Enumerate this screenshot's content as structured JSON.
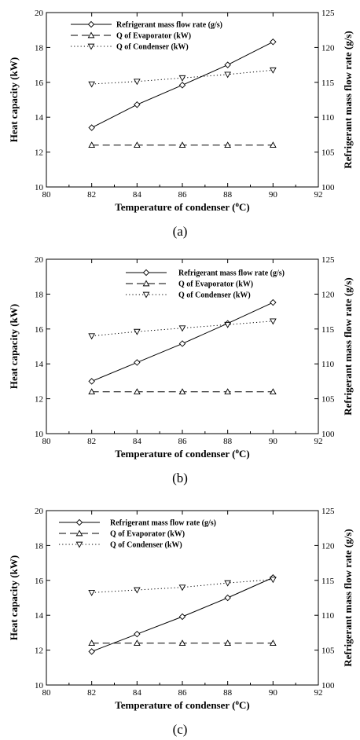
{
  "chart_data": [
    {
      "type": "line",
      "caption": "(a)",
      "xlabel": "Temperature of condenser (",
      "xlabel_sup": "o",
      "xlabel_end": "C)",
      "ylabel_left": "Heat capacity (kW)",
      "ylabel_right": "Refrigerant mass flow rate (g/s)",
      "xlim": [
        80,
        92
      ],
      "ylim_left": [
        10,
        20
      ],
      "ylim_right": [
        100,
        125
      ],
      "xticks": [
        80,
        82,
        84,
        86,
        88,
        90,
        92
      ],
      "yticks_left": [
        10,
        12,
        14,
        16,
        18,
        20
      ],
      "yticks_right": [
        100,
        105,
        110,
        115,
        120,
        125
      ],
      "x": [
        82,
        84,
        86,
        88,
        90
      ],
      "series": [
        {
          "name": "Refrigerant mass flow rate (g/s)",
          "axis": "right",
          "marker": "diamond",
          "line": "solid",
          "values": [
            108.5,
            111.8,
            114.6,
            117.5,
            120.8
          ]
        },
        {
          "name": "Q of Evaporator (kW)",
          "axis": "left",
          "marker": "triangle-up",
          "line": "dashed",
          "values": [
            12.4,
            12.4,
            12.4,
            12.4,
            12.4
          ]
        },
        {
          "name": "Q of Condenser (kW)",
          "axis": "left",
          "marker": "triangle-down",
          "line": "dotted",
          "values": [
            15.9,
            16.05,
            16.25,
            16.45,
            16.7
          ]
        }
      ]
    },
    {
      "type": "line",
      "caption": "(b)",
      "xlabel": "Temperature of condenser (",
      "xlabel_sup": "o",
      "xlabel_end": "C)",
      "ylabel_left": "Heat capacity (kW)",
      "ylabel_right": "Refrigerant mass flow rate (g/s)",
      "xlim": [
        80,
        92
      ],
      "ylim_left": [
        10,
        20
      ],
      "ylim_right": [
        100,
        125
      ],
      "xticks": [
        80,
        82,
        84,
        86,
        88,
        90,
        92
      ],
      "yticks_left": [
        10,
        12,
        14,
        16,
        18,
        20
      ],
      "yticks_right": [
        100,
        105,
        110,
        115,
        120,
        125
      ],
      "x": [
        82,
        84,
        86,
        88,
        90
      ],
      "series": [
        {
          "name": "Refrigerant mass flow rate (g/s)",
          "axis": "right",
          "marker": "diamond",
          "line": "solid",
          "values": [
            107.5,
            110.2,
            112.9,
            115.8,
            118.8
          ]
        },
        {
          "name": "Q of Evaporator (kW)",
          "axis": "left",
          "marker": "triangle-up",
          "line": "dashed",
          "values": [
            12.4,
            12.4,
            12.4,
            12.4,
            12.4
          ]
        },
        {
          "name": "Q of Condenser (kW)",
          "axis": "left",
          "marker": "triangle-down",
          "line": "dotted",
          "values": [
            15.6,
            15.85,
            16.05,
            16.25,
            16.45
          ]
        }
      ]
    },
    {
      "type": "line",
      "caption": "(c)",
      "xlabel": "Temperature of condenser (",
      "xlabel_sup": "o",
      "xlabel_end": "C)",
      "ylabel_left": "Heat capacity (kW)",
      "ylabel_right": "Refrigerant mass flow rate (g/s)",
      "xlim": [
        80,
        92
      ],
      "ylim_left": [
        10,
        20
      ],
      "ylim_right": [
        100,
        125
      ],
      "xticks": [
        80,
        82,
        84,
        86,
        88,
        90,
        92
      ],
      "yticks_left": [
        10,
        12,
        14,
        16,
        18,
        20
      ],
      "yticks_right": [
        100,
        105,
        110,
        115,
        120,
        125
      ],
      "x": [
        82,
        84,
        86,
        88,
        90
      ],
      "series": [
        {
          "name": "Refrigerant mass flow rate (g/s)",
          "axis": "right",
          "marker": "diamond",
          "line": "solid",
          "values": [
            104.8,
            107.3,
            109.8,
            112.5,
            115.4
          ]
        },
        {
          "name": "Q of Evaporator (kW)",
          "axis": "left",
          "marker": "triangle-up",
          "line": "dashed",
          "values": [
            12.4,
            12.4,
            12.4,
            12.4,
            12.4
          ]
        },
        {
          "name": "Q of Condenser (kW)",
          "axis": "left",
          "marker": "triangle-down",
          "line": "dotted",
          "values": [
            15.3,
            15.45,
            15.6,
            15.85,
            16.05
          ]
        }
      ]
    }
  ]
}
